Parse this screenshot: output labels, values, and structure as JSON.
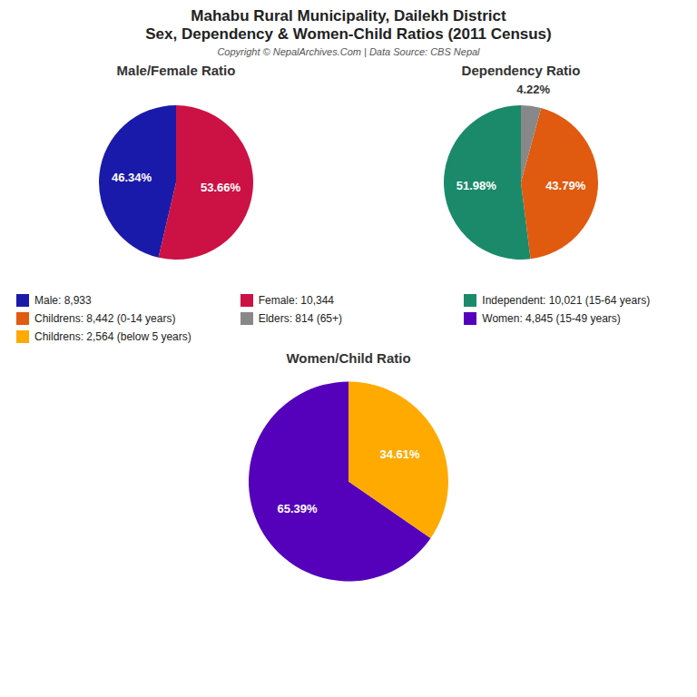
{
  "title": "Mahabu Rural Municipality, Dailekh District",
  "subtitle": "Sex, Dependency & Women-Child Ratios (2011 Census)",
  "annotations": [
    "Copyright © NepalArchives.Com | Data Source: CBS Nepal"
  ],
  "chart_data": [
    {
      "type": "pie",
      "title": "Male/Female Ratio",
      "categories": [
        "Male: 8,933",
        "Female: 10,344"
      ],
      "values": [
        46.34,
        53.66
      ],
      "value_labels": [
        "46.34%",
        "53.66%"
      ],
      "colors": [
        "#1a1aaa",
        "#cc1144"
      ],
      "data_labels": true,
      "legend": "bottom"
    },
    {
      "type": "pie",
      "title": "Dependency Ratio",
      "categories": [
        "Independent: 10,021 (15-64 years)",
        "Childrens: 8,442 (0-14 years)",
        "Elders: 814 (65+)"
      ],
      "values": [
        51.98,
        43.79,
        4.22
      ],
      "value_labels": [
        "51.98%",
        "43.79%",
        "4.22%"
      ],
      "colors": [
        "#1a8a6a",
        "#e05a10",
        "#888888"
      ],
      "data_labels": true,
      "legend": "bottom"
    },
    {
      "type": "pie",
      "title": "Women/Child Ratio",
      "categories": [
        "Women: 4,845 (15-49 years)",
        "Childrens: 2,564 (below 5 years)"
      ],
      "values": [
        65.39,
        34.61
      ],
      "value_labels": [
        "65.39%",
        "34.61%"
      ],
      "colors": [
        "#5500bb",
        "#ffaa00"
      ],
      "data_labels": true,
      "legend": "top"
    }
  ]
}
